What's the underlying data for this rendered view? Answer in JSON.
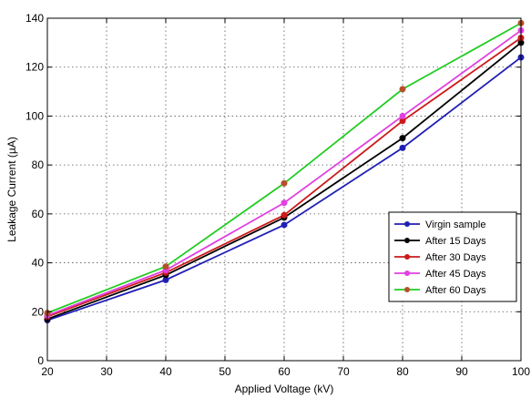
{
  "chart_data": {
    "type": "line",
    "xlabel": "Applied Voltage (kV)",
    "ylabel": "Leakage Current (µA)",
    "xlim": [
      20,
      100
    ],
    "ylim": [
      0,
      140
    ],
    "xticks": [
      20,
      30,
      40,
      50,
      60,
      70,
      80,
      90,
      100
    ],
    "yticks": [
      0,
      20,
      40,
      60,
      80,
      100,
      120,
      140
    ],
    "grid": true,
    "legend_position": "lower-right",
    "x": [
      20,
      40,
      60,
      80,
      100
    ],
    "series": [
      {
        "name": "Virgin sample",
        "color": "#1f1fb5",
        "marker_color": "#1f1fb5",
        "values": [
          16.5,
          33,
          55.5,
          87,
          124
        ]
      },
      {
        "name": "After 15 Days",
        "color": "#000000",
        "marker_color": "#000000",
        "values": [
          17,
          35,
          58.5,
          91,
          130
        ]
      },
      {
        "name": "After 30 Days",
        "color": "#cc1a1a",
        "marker_color": "#cc1a1a",
        "values": [
          18,
          36,
          59.5,
          98,
          132
        ]
      },
      {
        "name": "After 45 Days",
        "color": "#e040e0",
        "marker_color": "#e040e0",
        "values": [
          18.5,
          37,
          64.5,
          100,
          135
        ]
      },
      {
        "name": "After 60 Days",
        "color": "#22cc22",
        "marker_color": "#b5502a",
        "values": [
          19.5,
          38.5,
          72.5,
          111,
          138
        ]
      }
    ]
  }
}
